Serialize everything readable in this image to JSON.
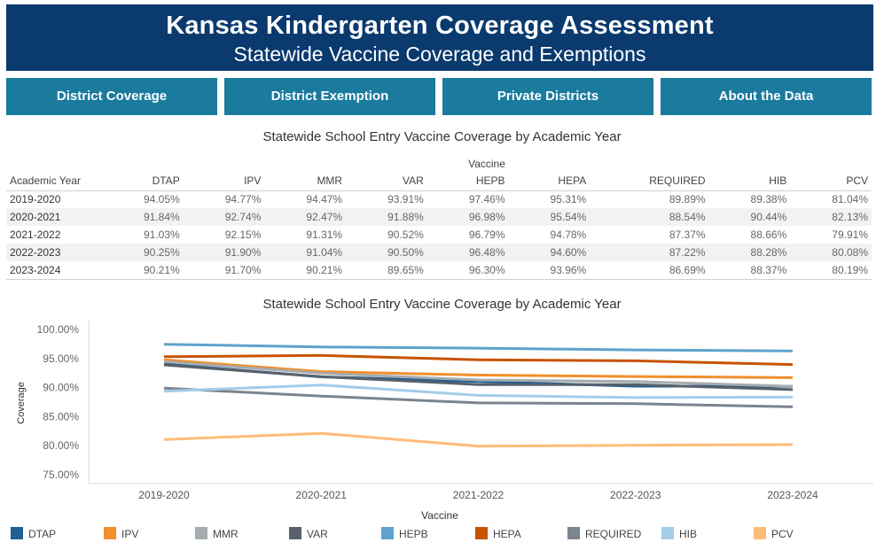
{
  "header": {
    "title": "Kansas Kindergarten Coverage Assessment",
    "subtitle": "Statewide Vaccine Coverage and Exemptions"
  },
  "nav": [
    {
      "label": "District Coverage"
    },
    {
      "label": "District Exemption"
    },
    {
      "label": "Private Districts"
    },
    {
      "label": "About the Data"
    }
  ],
  "table": {
    "title": "Statewide School Entry Vaccine Coverage by Academic Year",
    "group_label": "Vaccine",
    "year_header": "Academic Year",
    "columns": [
      "DTAP",
      "IPV",
      "MMR",
      "VAR",
      "HEPB",
      "HEPA",
      "REQUIRED",
      "HIB",
      "PCV"
    ],
    "rows": [
      {
        "year": "2019-2020",
        "values": [
          "94.05%",
          "94.77%",
          "94.47%",
          "93.91%",
          "97.46%",
          "95.31%",
          "89.89%",
          "89.38%",
          "81.04%"
        ]
      },
      {
        "year": "2020-2021",
        "values": [
          "91.84%",
          "92.74%",
          "92.47%",
          "91.88%",
          "96.98%",
          "95.54%",
          "88.54%",
          "90.44%",
          "82.13%"
        ]
      },
      {
        "year": "2021-2022",
        "values": [
          "91.03%",
          "92.15%",
          "91.31%",
          "90.52%",
          "96.79%",
          "94.78%",
          "87.37%",
          "88.66%",
          "79.91%"
        ]
      },
      {
        "year": "2022-2023",
        "values": [
          "90.25%",
          "91.90%",
          "91.04%",
          "90.50%",
          "96.48%",
          "94.60%",
          "87.22%",
          "88.28%",
          "80.08%"
        ]
      },
      {
        "year": "2023-2024",
        "values": [
          "90.21%",
          "91.70%",
          "90.21%",
          "89.65%",
          "96.30%",
          "93.96%",
          "86.69%",
          "88.37%",
          "80.19%"
        ]
      }
    ]
  },
  "chart_data": {
    "type": "line",
    "title": "Statewide School Entry Vaccine Coverage by Academic Year",
    "xlabel": "Vaccine",
    "ylabel": "Coverage",
    "categories": [
      "2019-2020",
      "2020-2021",
      "2021-2022",
      "2022-2023",
      "2023-2024"
    ],
    "y_ticks": [
      "100.00%",
      "95.00%",
      "90.00%",
      "85.00%",
      "80.00%",
      "75.00%"
    ],
    "ylim": [
      75,
      100
    ],
    "grid": false,
    "legend_position": "bottom",
    "series": [
      {
        "name": "DTAP",
        "color": "#1f5f91",
        "values": [
          94.05,
          91.84,
          91.03,
          90.25,
          90.21
        ]
      },
      {
        "name": "IPV",
        "color": "#f28e2b",
        "values": [
          94.77,
          92.74,
          92.15,
          91.9,
          91.7
        ]
      },
      {
        "name": "MMR",
        "color": "#a5acaf",
        "values": [
          94.47,
          92.47,
          91.31,
          91.04,
          90.21
        ]
      },
      {
        "name": "VAR",
        "color": "#57606c",
        "values": [
          93.91,
          91.88,
          90.52,
          90.5,
          89.65
        ]
      },
      {
        "name": "HEPB",
        "color": "#5fa2ce",
        "values": [
          97.46,
          96.98,
          96.79,
          96.48,
          96.3
        ]
      },
      {
        "name": "HEPA",
        "color": "#c85200",
        "values": [
          95.31,
          95.54,
          94.78,
          94.6,
          93.96
        ]
      },
      {
        "name": "REQUIRED",
        "color": "#7b848f",
        "values": [
          89.89,
          88.54,
          87.37,
          87.22,
          86.69
        ]
      },
      {
        "name": "HIB",
        "color": "#a3cce9",
        "values": [
          89.38,
          90.44,
          88.66,
          88.28,
          88.37
        ]
      },
      {
        "name": "PCV",
        "color": "#ffbc79",
        "values": [
          81.04,
          82.13,
          79.91,
          80.08,
          80.19
        ]
      }
    ]
  }
}
